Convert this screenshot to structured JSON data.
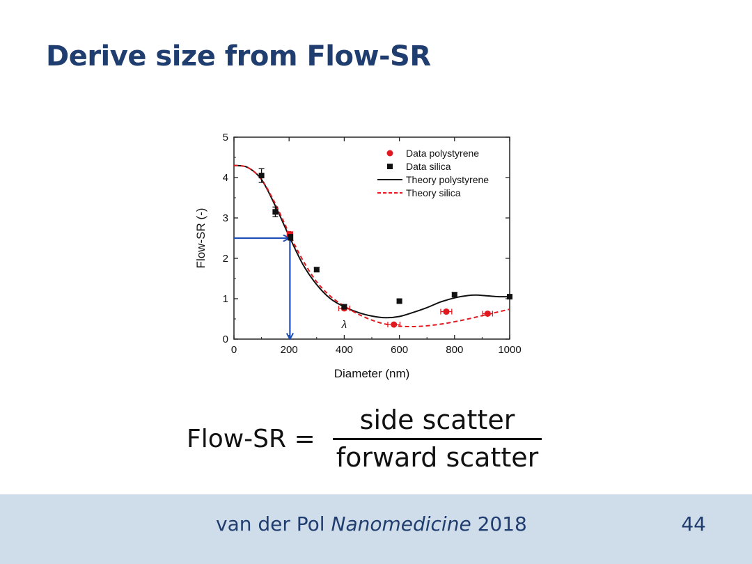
{
  "slide": {
    "title": "Derive size from Flow-SR"
  },
  "formula": {
    "lhs": "Flow-SR =",
    "numerator": "side scatter",
    "denominator": "forward scatter"
  },
  "footer": {
    "citation_author": "van der Pol",
    "citation_journal": "Nanomedicine",
    "citation_year": "2018",
    "page_number": "44"
  },
  "colors": {
    "title": "#1f3d6e",
    "footer_bg": "#cfdcea",
    "polystyrene": "#e0181f",
    "silica": "#111111",
    "arrow": "#1f4fb5"
  },
  "chart_data": {
    "type": "scatter",
    "xlabel": "Diameter (nm)",
    "ylabel": "Flow-SR (-)",
    "xlim": [
      0,
      1000
    ],
    "ylim": [
      0,
      5
    ],
    "xticks": [
      0,
      200,
      400,
      600,
      800,
      1000
    ],
    "yticks": [
      0,
      1,
      2,
      3,
      4,
      5
    ],
    "grid": false,
    "legend_position": "top-right",
    "annotation": "λ",
    "annotation_x": 400,
    "arrow_value": {
      "diameter": 203,
      "flow_sr": 2.5
    },
    "series": [
      {
        "name": "Data polystyrene",
        "kind": "points",
        "marker": "circle",
        "color": "#e0181f",
        "points": [
          {
            "x": 203,
            "y": 2.6,
            "xerr": 10,
            "yerr": 0.05
          },
          {
            "x": 400,
            "y": 0.76,
            "xerr": 20,
            "yerr": 0.04
          },
          {
            "x": 580,
            "y": 0.36,
            "xerr": 22,
            "yerr": 0.03
          },
          {
            "x": 770,
            "y": 0.68,
            "xerr": 20,
            "yerr": 0.04
          },
          {
            "x": 920,
            "y": 0.63,
            "xerr": 18,
            "yerr": 0.04
          }
        ]
      },
      {
        "name": "Data silica",
        "kind": "points",
        "marker": "square",
        "color": "#111111",
        "points": [
          {
            "x": 100,
            "y": 4.05,
            "xerr": 0,
            "yerr": 0.17
          },
          {
            "x": 150,
            "y": 3.15,
            "xerr": 0,
            "yerr": 0.12
          },
          {
            "x": 205,
            "y": 2.52,
            "xerr": 0,
            "yerr": 0.07
          },
          {
            "x": 300,
            "y": 1.72,
            "xerr": 0,
            "yerr": 0.05
          },
          {
            "x": 400,
            "y": 0.8,
            "xerr": 0,
            "yerr": 0.05
          },
          {
            "x": 600,
            "y": 0.94,
            "xerr": 0,
            "yerr": 0.04
          },
          {
            "x": 800,
            "y": 1.1,
            "xerr": 0,
            "yerr": 0.05
          },
          {
            "x": 1000,
            "y": 1.05,
            "xerr": 0,
            "yerr": 0.04
          }
        ]
      },
      {
        "name": "Theory polystyrene",
        "kind": "line",
        "dash": "solid",
        "color": "#111111",
        "x": [
          0,
          50,
          100,
          150,
          200,
          250,
          300,
          350,
          400,
          450,
          500,
          550,
          600,
          650,
          700,
          750,
          800,
          850,
          880,
          920,
          960,
          1000
        ],
        "y": [
          4.3,
          4.25,
          3.95,
          3.3,
          2.55,
          1.85,
          1.35,
          1.0,
          0.8,
          0.66,
          0.57,
          0.53,
          0.56,
          0.66,
          0.78,
          0.92,
          1.02,
          1.08,
          1.09,
          1.07,
          1.05,
          1.05
        ]
      },
      {
        "name": "Theory silica",
        "kind": "line",
        "dash": "dashed",
        "color": "#e0181f",
        "x": [
          0,
          50,
          100,
          150,
          200,
          250,
          300,
          350,
          400,
          450,
          500,
          550,
          600,
          650,
          700,
          750,
          800,
          850,
          900,
          950,
          1000
        ],
        "y": [
          4.3,
          4.25,
          3.95,
          3.35,
          2.62,
          1.95,
          1.42,
          1.06,
          0.82,
          0.62,
          0.47,
          0.37,
          0.32,
          0.31,
          0.33,
          0.37,
          0.43,
          0.5,
          0.58,
          0.66,
          0.74
        ]
      }
    ]
  }
}
